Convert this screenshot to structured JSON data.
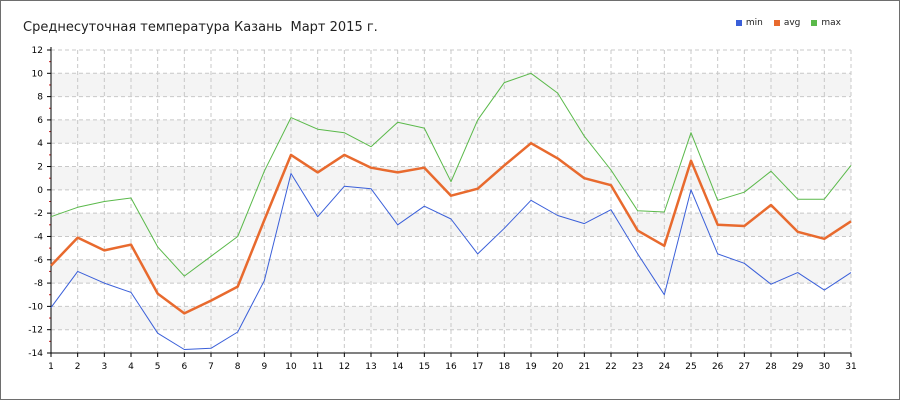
{
  "chart_data": {
    "type": "line",
    "title": "Среднесуточная температура Казань  Март 2015 г.",
    "xlabel": "",
    "ylabel": "",
    "x": [
      1,
      2,
      3,
      4,
      5,
      6,
      7,
      8,
      9,
      10,
      11,
      12,
      13,
      14,
      15,
      16,
      17,
      18,
      19,
      20,
      21,
      22,
      23,
      24,
      25,
      26,
      27,
      28,
      29,
      30,
      31
    ],
    "xlim": [
      1,
      31
    ],
    "ylim": [
      -14,
      12
    ],
    "yticks": [
      -14,
      -12,
      -10,
      -8,
      -6,
      -4,
      -2,
      0,
      2,
      4,
      6,
      8,
      10,
      12
    ],
    "grid": true,
    "legend_position": "top-right",
    "series": [
      {
        "name": "min",
        "color": "#3a5fd9",
        "values": [
          -10.1,
          -7.0,
          -8.0,
          -8.8,
          -12.3,
          -13.7,
          -13.6,
          -12.2,
          -7.8,
          1.4,
          -2.3,
          0.3,
          0.1,
          -3.0,
          -1.4,
          -2.5,
          -5.5,
          -3.3,
          -0.9,
          -2.2,
          -2.9,
          -1.7,
          -5.5,
          -9.0,
          0.0,
          -5.5,
          -6.3,
          -8.1,
          -7.1,
          -8.6,
          -7.1
        ]
      },
      {
        "name": "avg",
        "color": "#e86a2e",
        "values": [
          -6.5,
          -4.1,
          -5.2,
          -4.7,
          -8.9,
          -10.6,
          -9.5,
          -8.3,
          -2.6,
          3.0,
          1.5,
          3.0,
          1.9,
          1.5,
          1.9,
          -0.5,
          0.1,
          2.1,
          4.0,
          2.7,
          1.0,
          0.4,
          -3.5,
          -4.8,
          2.5,
          -3.0,
          -3.1,
          -1.3,
          -3.6,
          -4.2,
          -2.7
        ]
      },
      {
        "name": "max",
        "color": "#5ab94a",
        "values": [
          -2.3,
          -1.5,
          -1.0,
          -0.7,
          -4.9,
          -7.4,
          -5.7,
          -4.0,
          1.6,
          6.2,
          5.2,
          4.9,
          3.7,
          5.8,
          5.3,
          0.7,
          6.0,
          9.2,
          10.0,
          8.3,
          4.6,
          1.7,
          -1.8,
          -1.9,
          4.9,
          -0.9,
          -0.2,
          1.6,
          -0.8,
          -0.8,
          2.1
        ]
      }
    ]
  }
}
